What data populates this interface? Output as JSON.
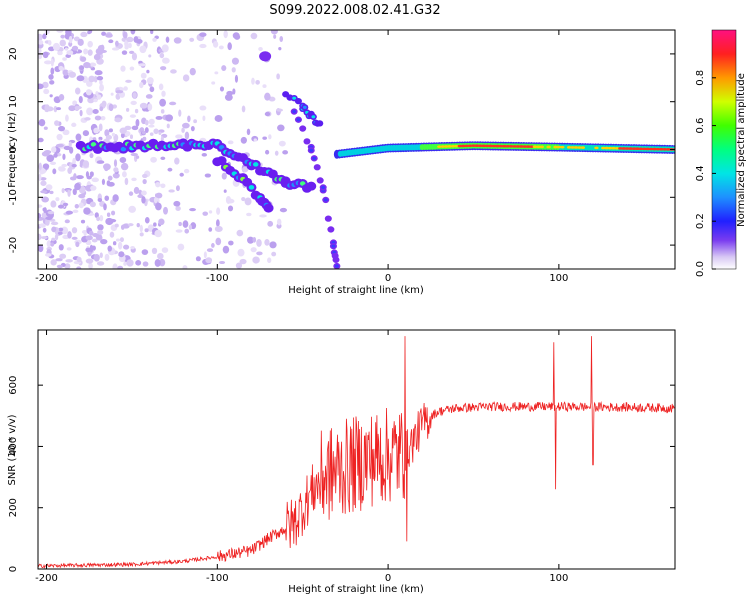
{
  "title": "S099.2022.008.02.41.G32",
  "chart_data": [
    {
      "type": "heatmap",
      "xlabel": "Height of straight line (km)",
      "ylabel": "Frequency (Hz)",
      "xlim": [
        -205,
        168
      ],
      "ylim": [
        -25,
        25
      ],
      "xticks": [
        -200,
        -100,
        0,
        100
      ],
      "yticks": [
        -20,
        -10,
        0,
        10,
        20
      ],
      "colorbar": {
        "label": "Normalized spectral amplitude",
        "range": [
          0,
          1
        ],
        "ticks": [
          "0.0",
          "0.2",
          "0.4",
          "0.6",
          "0.8"
        ]
      },
      "features": [
        {
          "name": "main-trace",
          "points": [
            [
              -180,
              0.5
            ],
            [
              -150,
              0.6
            ],
            [
              -120,
              1.0
            ],
            [
              -100,
              0.8
            ],
            [
              -80,
              -3
            ],
            [
              -60,
              -7
            ],
            [
              -45,
              -8
            ]
          ]
        },
        {
          "name": "low-branch",
          "points": [
            [
              -100,
              -2
            ],
            [
              -85,
              -6
            ],
            [
              -75,
              -10
            ],
            [
              -70,
              -12
            ]
          ]
        },
        {
          "name": "diag-branch",
          "points": [
            [
              -55,
              8
            ],
            [
              -45,
              0
            ],
            [
              -38,
              -8
            ],
            [
              -32,
              -20
            ],
            [
              -30,
              -24
            ]
          ]
        },
        {
          "name": "high-branch",
          "points": [
            [
              -60,
              12
            ],
            [
              -50,
              9
            ],
            [
              -45,
              7
            ],
            [
              -40,
              5
            ]
          ]
        },
        {
          "name": "blob-20hz",
          "points": [
            [
              -72,
              19.5
            ]
          ]
        },
        {
          "name": "flat-trace",
          "points": [
            [
              -30,
              -1
            ],
            [
              0,
              0.3
            ],
            [
              50,
              0.8
            ],
            [
              100,
              0.5
            ],
            [
              168,
              0
            ]
          ]
        }
      ]
    },
    {
      "type": "line",
      "xlabel": "Height of straight line (km)",
      "ylabel": "SNR (10 * v/v)",
      "xlim": [
        -205,
        168
      ],
      "ylim": [
        0,
        780
      ],
      "xticks": [
        -200,
        -100,
        0,
        100
      ],
      "yticks": [
        0,
        200,
        400,
        600
      ],
      "color": "#ee2222",
      "trend": [
        [
          -205,
          10
        ],
        [
          -150,
          15
        ],
        [
          -120,
          25
        ],
        [
          -100,
          40
        ],
        [
          -80,
          60
        ],
        [
          -70,
          100
        ],
        [
          -55,
          150
        ],
        [
          -45,
          250
        ],
        [
          -38,
          300
        ],
        [
          -30,
          320
        ],
        [
          -20,
          340
        ],
        [
          -10,
          360
        ],
        [
          0,
          370
        ],
        [
          10,
          380
        ],
        [
          15,
          420
        ],
        [
          20,
          470
        ],
        [
          25,
          500
        ],
        [
          30,
          515
        ],
        [
          40,
          525
        ],
        [
          60,
          530
        ],
        [
          100,
          530
        ],
        [
          140,
          528
        ],
        [
          168,
          525
        ]
      ],
      "spikes": [
        [
          10,
          760
        ],
        [
          11,
          90
        ],
        [
          97,
          740
        ],
        [
          98,
          260
        ],
        [
          119,
          760
        ],
        [
          120,
          340
        ]
      ]
    }
  ]
}
